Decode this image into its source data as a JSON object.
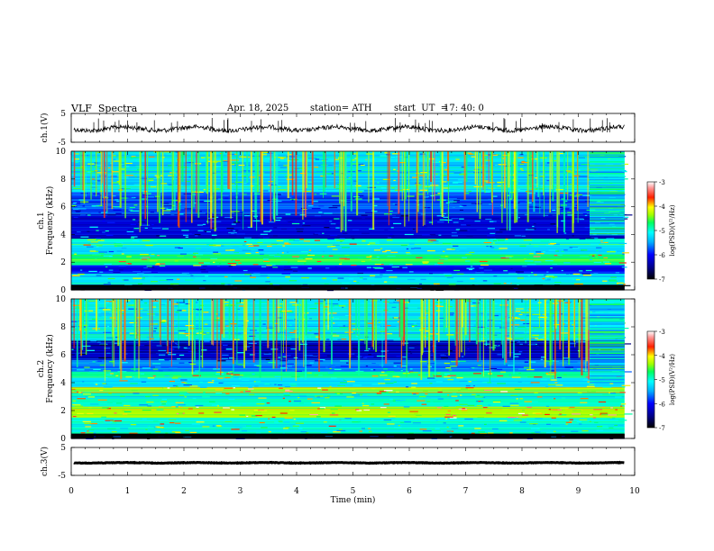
{
  "header": {
    "title": "VLF  Spectra",
    "date": "Apr. 18, 2025",
    "station": "station= ATH",
    "start_label": "start  UT  =",
    "start_time": "17: 40: 0"
  },
  "chart_data": [
    {
      "type": "line",
      "name": "ch1-waveform",
      "ylabel": "ch.1(V)",
      "ylim": [
        -5,
        5
      ],
      "yticks": [
        "5",
        "-5"
      ],
      "xlim": [
        0,
        10
      ],
      "x_end": 9.82,
      "level": -0.3
    },
    {
      "type": "heatmap",
      "name": "ch1-spectrogram",
      "ylabel": "ch.1\nFrequency  (kHz)",
      "ylim": [
        0,
        10
      ],
      "yticks": [
        "0",
        "2",
        "4",
        "6",
        "8",
        "10"
      ],
      "xlim": [
        0,
        10
      ],
      "x_end": 9.82,
      "colorbar": {
        "label": "log(PSD)(V²/Hz)",
        "min": -7,
        "max": -3,
        "ticks": [
          "-3",
          "-4",
          "-5",
          "-6",
          "-7"
        ]
      },
      "bands": [
        {
          "f_range": [
            0,
            0.4
          ],
          "level": -6.9
        },
        {
          "f_range": [
            0.4,
            1.2
          ],
          "level": -5.2
        },
        {
          "f_range": [
            1.2,
            1.8
          ],
          "level": -6.0
        },
        {
          "f_range": [
            1.8,
            2.6
          ],
          "level": -4.7
        },
        {
          "f_range": [
            2.6,
            3.2
          ],
          "level": -5.3
        },
        {
          "f_range": [
            3.2,
            3.7
          ],
          "level": -5.0
        },
        {
          "f_range": [
            3.7,
            5.5
          ],
          "level": -6.2
        },
        {
          "f_range": [
            5.5,
            7.0
          ],
          "level": -5.8
        },
        {
          "f_range": [
            7.0,
            10.0
          ],
          "level": -5.2
        }
      ],
      "change_at_min": 9.2
    },
    {
      "type": "heatmap",
      "name": "ch2-spectrogram",
      "ylabel": "ch.2\nFrequency  (kHz)",
      "ylim": [
        0,
        10
      ],
      "yticks": [
        "0",
        "2",
        "4",
        "6",
        "8",
        "10"
      ],
      "xlim": [
        0,
        10
      ],
      "x_end": 9.82,
      "colorbar": {
        "label": "log(PSD)(V²/Hz)",
        "min": -7,
        "max": -3,
        "ticks": [
          "-3",
          "-4",
          "-5",
          "-6",
          "-7"
        ]
      },
      "bands": [
        {
          "f_range": [
            0,
            0.3
          ],
          "level": -6.9
        },
        {
          "f_range": [
            0.3,
            1.5
          ],
          "level": -5.0
        },
        {
          "f_range": [
            1.5,
            2.3
          ],
          "level": -4.3
        },
        {
          "f_range": [
            2.3,
            3.3
          ],
          "level": -5.0
        },
        {
          "f_range": [
            3.3,
            3.7
          ],
          "level": -4.3
        },
        {
          "f_range": [
            3.7,
            4.4
          ],
          "level": -5.2
        },
        {
          "f_range": [
            4.4,
            4.8
          ],
          "level": -4.8
        },
        {
          "f_range": [
            4.8,
            5.6
          ],
          "level": -5.7
        },
        {
          "f_range": [
            5.6,
            7.0
          ],
          "level": -6.3
        },
        {
          "f_range": [
            7.0,
            10.0
          ],
          "level": -5.2
        }
      ],
      "change_at_min": 9.2
    },
    {
      "type": "line",
      "name": "ch3-waveform",
      "ylabel": "ch.3(V)",
      "ylim": [
        -5,
        5
      ],
      "yticks": [
        "5",
        "-5"
      ],
      "xlim": [
        0,
        10
      ],
      "x_end": 9.82,
      "level": -0.5
    }
  ],
  "x_axis": {
    "label": "Time  (min)",
    "ticks": [
      "0",
      "1",
      "2",
      "3",
      "4",
      "5",
      "6",
      "7",
      "8",
      "9",
      "10"
    ]
  },
  "colors": {
    "colormap": [
      "#000066",
      "#0000ff",
      "#00a0ff",
      "#00ffff",
      "#00ff80",
      "#80ff00",
      "#ffff00",
      "#ff8000",
      "#ff0000",
      "#ff9090",
      "#ffffff"
    ]
  }
}
